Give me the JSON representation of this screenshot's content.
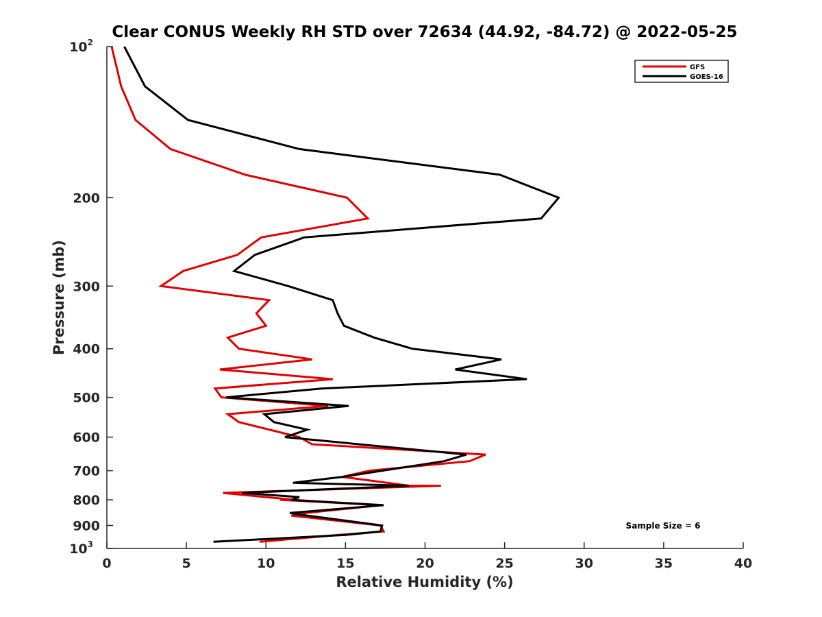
{
  "chart_data": {
    "type": "line",
    "title": "Clear CONUS Weekly RH STD over 72634 (44.92, -84.72) @ 2022-05-25",
    "xlabel": "Relative Humidity (%)",
    "ylabel": "Pressure (mb)",
    "xlim": [
      0,
      40
    ],
    "ylim": [
      100,
      1000
    ],
    "yscale": "log",
    "yreversed": true,
    "grid": false,
    "x_ticks": [
      0,
      5,
      10,
      15,
      20,
      25,
      30,
      35,
      40
    ],
    "x_tick_labels": [
      "0",
      "5",
      "10",
      "15",
      "20",
      "25",
      "30",
      "35",
      "40"
    ],
    "y_ticks": [
      {
        "value": 100,
        "label": "10",
        "sup": "2"
      },
      {
        "value": 200,
        "label": "200",
        "sup": ""
      },
      {
        "value": 300,
        "label": "300",
        "sup": ""
      },
      {
        "value": 400,
        "label": "400",
        "sup": ""
      },
      {
        "value": 500,
        "label": "500",
        "sup": ""
      },
      {
        "value": 600,
        "label": "600",
        "sup": ""
      },
      {
        "value": 700,
        "label": "700",
        "sup": ""
      },
      {
        "value": 800,
        "label": "800",
        "sup": ""
      },
      {
        "value": 900,
        "label": "900",
        "sup": ""
      },
      {
        "value": 1000,
        "label": "10",
        "sup": "3"
      }
    ],
    "legend_position": "top-right",
    "annotation": "Sample Size = 6",
    "series": [
      {
        "name": "GFS",
        "color": "#e00000",
        "rh": [
          0.3,
          0.9,
          1.8,
          4.0,
          8.7,
          15.1,
          16.4,
          9.7,
          8.2,
          4.8,
          3.4,
          10.2,
          9.4,
          10.0,
          7.6,
          8.3,
          12.9,
          7.1,
          14.2,
          6.8,
          7.2,
          13.9,
          7.6,
          8.3,
          12.1,
          12.9,
          23.8,
          22.8,
          16.5,
          14.8,
          19.0,
          21.0,
          7.3,
          11.8,
          10.9,
          17.2,
          12.5,
          11.6,
          17.2,
          17.4,
          14.6,
          9.6
        ],
        "pressure": [
          100,
          120,
          140,
          160,
          180,
          200,
          220,
          240,
          260,
          280,
          300,
          320,
          340,
          360,
          380,
          400,
          420,
          440,
          460,
          480,
          500,
          520,
          540,
          560,
          600,
          620,
          650,
          670,
          700,
          720,
          750,
          750,
          775,
          800,
          800,
          820,
          850,
          860,
          900,
          925,
          940,
          970
        ]
      },
      {
        "name": "GOES-16",
        "color": "#000000",
        "rh": [
          1.1,
          2.4,
          5.1,
          12.1,
          24.7,
          28.4,
          27.3,
          12.4,
          9.3,
          8.0,
          11.4,
          14.2,
          14.5,
          14.9,
          16.8,
          19.2,
          24.8,
          21.9,
          26.4,
          13.5,
          7.5,
          15.2,
          9.9,
          10.5,
          12.6,
          11.2,
          22.6,
          21.2,
          17.3,
          14.8,
          11.7,
          19.0,
          8.5,
          12.1,
          11.6,
          17.4,
          11.5,
          12.6,
          17.3,
          17.2,
          15.0,
          6.7
        ],
        "pressure": [
          100,
          120,
          140,
          160,
          180,
          200,
          220,
          240,
          260,
          280,
          300,
          320,
          340,
          360,
          380,
          400,
          420,
          440,
          460,
          480,
          500,
          520,
          540,
          560,
          580,
          600,
          650,
          670,
          700,
          720,
          740,
          750,
          775,
          790,
          800,
          820,
          850,
          860,
          900,
          925,
          940,
          970
        ]
      }
    ]
  }
}
